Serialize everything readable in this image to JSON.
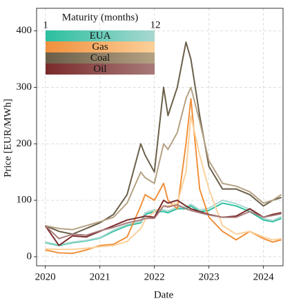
{
  "chart_data": {
    "type": "line",
    "xlabel": "Date",
    "ylabel": "Price [EUR/MWh]",
    "x": [
      2020.0,
      2020.25,
      2020.5,
      2020.75,
      2021.0,
      2021.25,
      2021.5,
      2021.75,
      2021.83,
      2022.0,
      2022.17,
      2022.25,
      2022.42,
      2022.58,
      2022.67,
      2022.83,
      2023.0,
      2023.25,
      2023.5,
      2023.75,
      2024.0,
      2024.17,
      2024.33
    ],
    "xlim": [
      2019.84,
      2024.36
    ],
    "xticks": [
      2020,
      2021,
      2022,
      2023,
      2024
    ],
    "ylim": [
      -16,
      440
    ],
    "yticks": [
      0,
      100,
      200,
      300,
      400
    ],
    "grid": true,
    "legend": {
      "title": "Maturity (months)",
      "min": 1,
      "max": 12
    },
    "series": [
      {
        "name": "EUA",
        "color": "#2bbf9f",
        "color_end": "#a8d8d0",
        "curves": [
          {
            "maturity": 1,
            "values": [
              25,
              20,
              25,
              28,
              33,
              45,
              55,
              60,
              75,
              80,
              80,
              78,
              85,
              85,
              90,
              80,
              82,
              95,
              90,
              80,
              65,
              62,
              68
            ]
          },
          {
            "maturity": 12,
            "values": [
              26,
              21,
              26,
              29,
              34,
              47,
              57,
              62,
              78,
              83,
              83,
              81,
              88,
              88,
              93,
              83,
              86,
              100,
              94,
              84,
              68,
              64,
              71
            ]
          }
        ]
      },
      {
        "name": "Gas",
        "color": "#f0903c",
        "color_end": "#fbd09a",
        "curves": [
          {
            "maturity": 1,
            "values": [
              12,
              7,
              6,
              12,
              20,
              22,
              35,
              90,
              110,
              100,
              130,
              100,
              85,
              200,
              280,
              120,
              70,
              45,
              30,
              45,
              32,
              26,
              30
            ]
          },
          {
            "maturity": 12,
            "values": [
              14,
              13,
              13,
              15,
              18,
              20,
              27,
              50,
              65,
              80,
              90,
              90,
              95,
              150,
              250,
              180,
              120,
              55,
              40,
              45,
              35,
              30,
              32
            ]
          }
        ]
      },
      {
        "name": "Coal",
        "color": "#6a5e48",
        "color_end": "#b5a183",
        "curves": [
          {
            "maturity": 1,
            "values": [
              55,
              45,
              40,
              50,
              60,
              75,
              110,
              200,
              180,
              150,
              300,
              250,
              300,
              380,
              350,
              250,
              160,
              120,
              120,
              110,
              90,
              100,
              105
            ]
          },
          {
            "maturity": 12,
            "values": [
              55,
              50,
              48,
              55,
              62,
              70,
              95,
              150,
              140,
              130,
              200,
              190,
              220,
              280,
              300,
              240,
              170,
              130,
              125,
              115,
              95,
              100,
              110
            ]
          }
        ]
      },
      {
        "name": "Oil",
        "color": "#7a2a2a",
        "color_end": "#a87a7a",
        "curves": [
          {
            "maturity": 1,
            "values": [
              55,
              20,
              37,
              35,
              45,
              55,
              65,
              70,
              72,
              70,
              100,
              95,
              100,
              90,
              85,
              80,
              75,
              70,
              72,
              85,
              70,
              75,
              78
            ]
          },
          {
            "maturity": 12,
            "values": [
              55,
              32,
              40,
              38,
              46,
              52,
              60,
              65,
              68,
              68,
              90,
              88,
              92,
              85,
              82,
              78,
              74,
              70,
              70,
              80,
              70,
              73,
              76
            ]
          }
        ]
      }
    ]
  }
}
